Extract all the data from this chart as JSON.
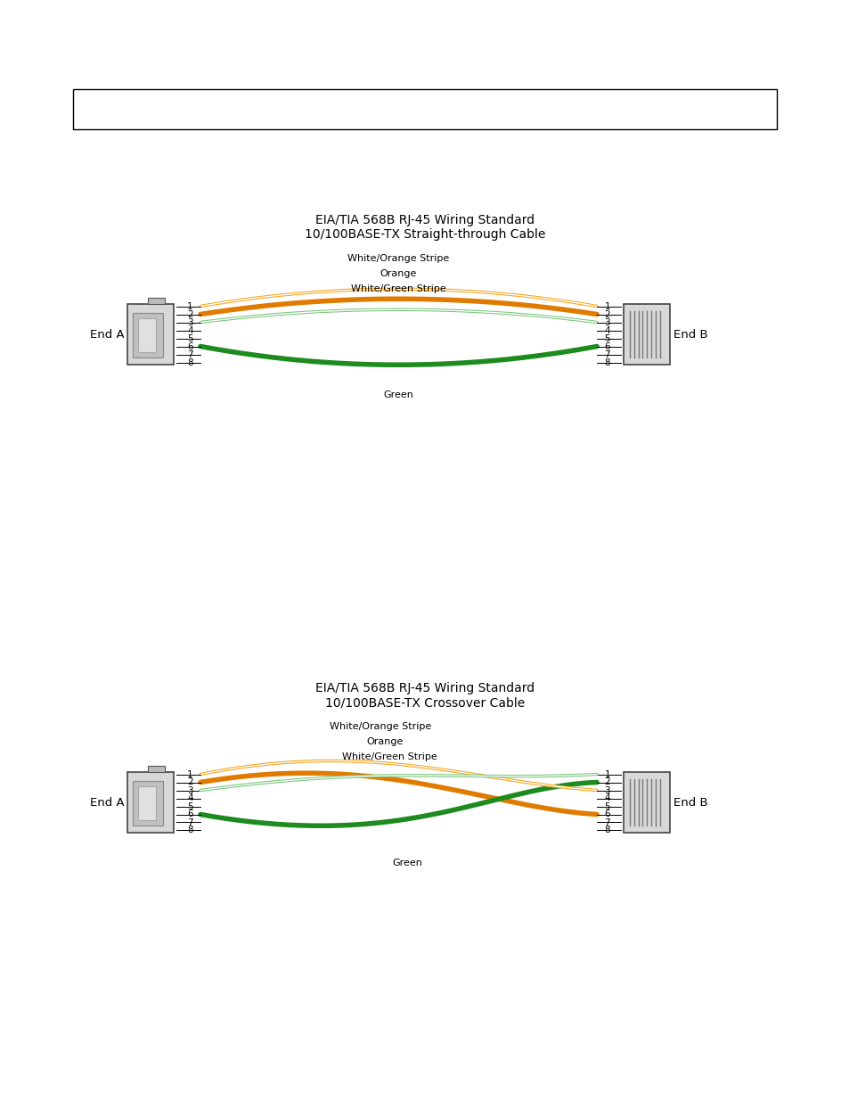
{
  "bg_color": "#ffffff",
  "title_straight": "EIA/TIA 568B RJ-45 Wiring Standard\n10/100BASE-TX Straight-through Cable",
  "title_crossover": "EIA/TIA 568B RJ-45 Wiring Standard\n10/100BASE-TX Crossover Cable",
  "color_white_orange": "#F5A623",
  "color_orange": "#E07B00",
  "color_white_green": "#7DC67E",
  "color_green": "#1E8B1E",
  "color_black": "#000000",
  "label_white_orange": "White/Orange Stripe",
  "label_orange": "Orange",
  "label_white_green": "White/Green Stripe",
  "label_green": "Green",
  "end_a_label": "End A",
  "end_b_label": "End B",
  "figw": 9.54,
  "figh": 12.35,
  "dpi": 100
}
